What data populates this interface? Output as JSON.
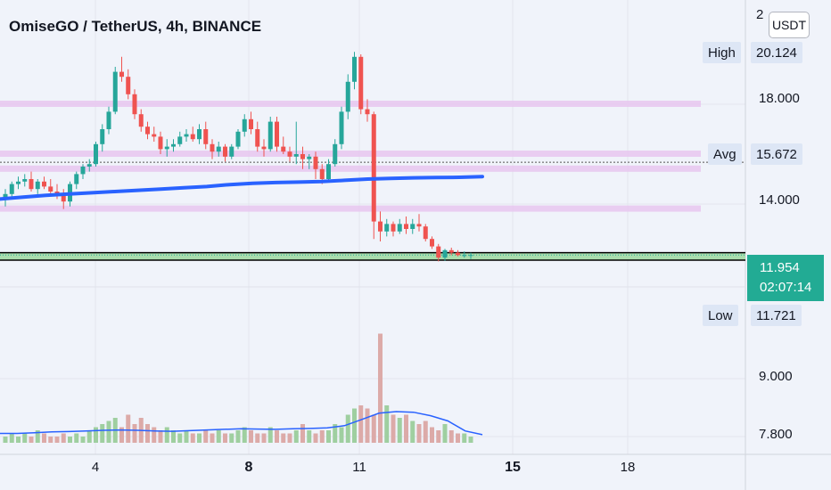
{
  "chart_data": {
    "type": "candlestick",
    "title": "OmiseGO / TetherUS, 4h, BINANCE",
    "currency": "USDT",
    "y_ticks": [
      18.0,
      14.0,
      9.0,
      7.8
    ],
    "y_tick_labels": [
      "18.000",
      "14.000",
      "9.000",
      "7.800"
    ],
    "y_top_partial_label": "2",
    "x_tick_labels": [
      "4",
      "8",
      "11",
      "15",
      "18"
    ],
    "x_tick_bold": [
      false,
      true,
      false,
      true,
      false
    ],
    "markers": {
      "high": {
        "label": "High",
        "value": "20.124"
      },
      "avg": {
        "label": "Avg",
        "value": "15.672"
      },
      "low": {
        "label": "Low",
        "value": "11.721"
      },
      "current": {
        "value": "11.954",
        "countdown": "02:07:14"
      }
    },
    "horizontal_zones": [
      18.0,
      16.0,
      15.4,
      13.8
    ],
    "support_zone": [
      11.75,
      12.05
    ],
    "ohlc": [
      [
        14.2,
        14.6,
        13.9,
        14.4
      ],
      [
        14.4,
        14.9,
        14.3,
        14.8
      ],
      [
        14.8,
        15.1,
        14.6,
        14.9
      ],
      [
        14.9,
        15.2,
        14.7,
        15.0
      ],
      [
        15.0,
        15.3,
        14.5,
        14.6
      ],
      [
        14.6,
        15.0,
        14.4,
        14.9
      ],
      [
        14.9,
        15.1,
        14.6,
        14.7
      ],
      [
        14.7,
        15.0,
        14.3,
        14.5
      ],
      [
        14.5,
        14.8,
        14.2,
        14.4
      ],
      [
        14.4,
        14.6,
        13.8,
        14.1
      ],
      [
        14.1,
        14.9,
        13.9,
        14.8
      ],
      [
        14.8,
        15.3,
        14.6,
        15.2
      ],
      [
        15.2,
        15.6,
        15.0,
        15.5
      ],
      [
        15.5,
        15.8,
        15.3,
        15.6
      ],
      [
        15.6,
        16.5,
        15.5,
        16.4
      ],
      [
        16.4,
        17.2,
        16.1,
        17.0
      ],
      [
        17.0,
        17.9,
        16.8,
        17.7
      ],
      [
        17.7,
        19.5,
        17.6,
        19.3
      ],
      [
        19.3,
        19.9,
        18.9,
        19.1
      ],
      [
        19.1,
        19.4,
        18.2,
        18.4
      ],
      [
        18.4,
        18.6,
        17.4,
        17.6
      ],
      [
        17.6,
        17.8,
        16.9,
        17.1
      ],
      [
        17.1,
        17.3,
        16.6,
        16.8
      ],
      [
        16.8,
        17.1,
        16.5,
        16.7
      ],
      [
        16.7,
        16.9,
        16.0,
        16.2
      ],
      [
        16.2,
        16.6,
        15.9,
        16.3
      ],
      [
        16.3,
        16.6,
        16.1,
        16.4
      ],
      [
        16.4,
        16.9,
        16.3,
        16.7
      ],
      [
        16.7,
        17.0,
        16.5,
        16.8
      ],
      [
        16.8,
        17.1,
        16.5,
        16.6
      ],
      [
        16.6,
        17.2,
        16.4,
        17.0
      ],
      [
        17.0,
        17.3,
        16.2,
        16.4
      ],
      [
        16.4,
        16.6,
        15.8,
        16.1
      ],
      [
        16.1,
        16.5,
        15.9,
        16.3
      ],
      [
        16.3,
        16.4,
        15.7,
        15.9
      ],
      [
        15.9,
        16.4,
        15.8,
        16.3
      ],
      [
        16.3,
        17.0,
        16.2,
        16.9
      ],
      [
        16.9,
        17.6,
        16.7,
        17.4
      ],
      [
        17.4,
        17.7,
        16.8,
        17.0
      ],
      [
        17.0,
        17.3,
        16.1,
        16.3
      ],
      [
        16.3,
        16.6,
        15.9,
        16.2
      ],
      [
        16.2,
        17.5,
        16.1,
        17.3
      ],
      [
        17.3,
        17.5,
        16.1,
        16.3
      ],
      [
        16.3,
        16.7,
        16.0,
        16.1
      ],
      [
        16.1,
        16.3,
        15.7,
        15.9
      ],
      [
        15.9,
        17.3,
        15.6,
        16.0
      ],
      [
        16.0,
        16.3,
        15.4,
        15.8
      ],
      [
        15.8,
        16.0,
        15.4,
        15.9
      ],
      [
        15.9,
        16.1,
        15.0,
        15.4
      ],
      [
        15.4,
        15.6,
        14.8,
        15.0
      ],
      [
        15.0,
        15.8,
        14.9,
        15.6
      ],
      [
        15.6,
        16.6,
        15.5,
        16.4
      ],
      [
        16.4,
        17.9,
        16.2,
        17.7
      ],
      [
        17.7,
        19.2,
        17.4,
        18.9
      ],
      [
        18.9,
        20.1,
        18.6,
        19.9
      ],
      [
        19.9,
        20.0,
        17.6,
        17.8
      ],
      [
        17.8,
        18.2,
        17.3,
        17.6
      ],
      [
        17.6,
        17.7,
        12.6,
        13.3
      ],
      [
        13.3,
        13.7,
        12.5,
        12.9
      ],
      [
        12.9,
        13.4,
        12.7,
        13.2
      ],
      [
        13.2,
        13.3,
        12.7,
        12.9
      ],
      [
        12.9,
        13.4,
        12.8,
        13.2
      ],
      [
        13.2,
        13.5,
        12.8,
        13.0
      ],
      [
        13.0,
        13.4,
        12.8,
        13.2
      ],
      [
        13.2,
        13.6,
        12.9,
        13.1
      ],
      [
        13.1,
        13.2,
        12.5,
        12.6
      ],
      [
        12.6,
        12.7,
        12.2,
        12.3
      ],
      [
        12.3,
        12.4,
        11.7,
        11.85
      ],
      [
        11.85,
        12.2,
        11.72,
        12.15
      ],
      [
        12.15,
        12.25,
        11.95,
        12.05
      ],
      [
        12.05,
        12.15,
        11.9,
        11.95
      ],
      [
        11.95,
        12.1,
        11.85,
        11.95
      ],
      [
        11.95,
        12.05,
        11.8,
        11.954
      ]
    ],
    "moving_average_price": [
      14.2,
      14.28,
      14.35,
      14.4,
      14.45,
      14.5,
      14.55,
      14.6,
      14.65,
      14.7,
      14.78,
      14.83,
      14.86,
      14.88,
      14.9,
      14.95,
      15.0,
      15.03,
      15.05,
      15.06,
      15.07,
      15.1
    ],
    "volume": [
      2,
      3,
      2,
      3,
      2,
      4,
      3,
      2,
      2,
      3,
      2,
      3,
      2,
      4,
      5,
      6,
      7,
      8,
      5,
      9,
      6,
      8,
      6,
      5,
      4,
      5,
      4,
      3,
      4,
      3,
      3,
      4,
      3,
      4,
      3,
      3,
      4,
      5,
      4,
      3,
      3,
      5,
      4,
      3,
      3,
      4,
      6,
      4,
      3,
      4,
      4,
      6,
      5,
      9,
      11,
      12,
      11,
      9,
      35,
      12,
      9,
      8,
      9,
      7,
      6,
      7,
      5,
      4,
      6,
      4,
      3,
      3,
      2
    ],
    "volume_ma": [
      3,
      3,
      3.2,
      3.5,
      3.6,
      3.8,
      4,
      4.1,
      4,
      3.8,
      3.7,
      3.9,
      4.1,
      4.3,
      4.5,
      4.4,
      4.3,
      4.5,
      4.6,
      4.8,
      5.5,
      7.5,
      9.5,
      10,
      9.8,
      8.7,
      7,
      3.8,
      2.6
    ]
  }
}
